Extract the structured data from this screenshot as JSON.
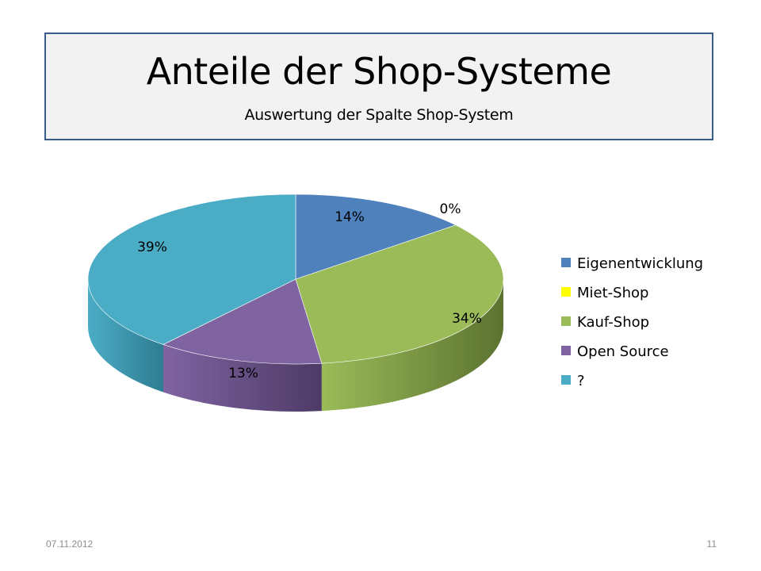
{
  "slide": {
    "title": "Anteile der Shop-Systeme",
    "subtitle": "Auswertung der Spalte Shop-System",
    "date": "07.11.2012",
    "page_number": "11"
  },
  "chart_data": {
    "type": "pie",
    "title": "",
    "is_3d": true,
    "legend_position": "right",
    "categories": [
      "Eigenentwicklung",
      "Miet-Shop",
      "Kauf-Shop",
      "Open Source",
      "?"
    ],
    "values": [
      14,
      0,
      34,
      13,
      39
    ],
    "labels": [
      "14%",
      "0%",
      "34%",
      "13%",
      "39%"
    ],
    "colors": [
      "#4f81bd",
      "#ffff00",
      "#9bbb59",
      "#8064a2",
      "#4bacc6"
    ],
    "side_colors": [
      "#34567f",
      "#a8a800",
      "#5b7330",
      "#4d3a66",
      "#2f7d92"
    ]
  }
}
